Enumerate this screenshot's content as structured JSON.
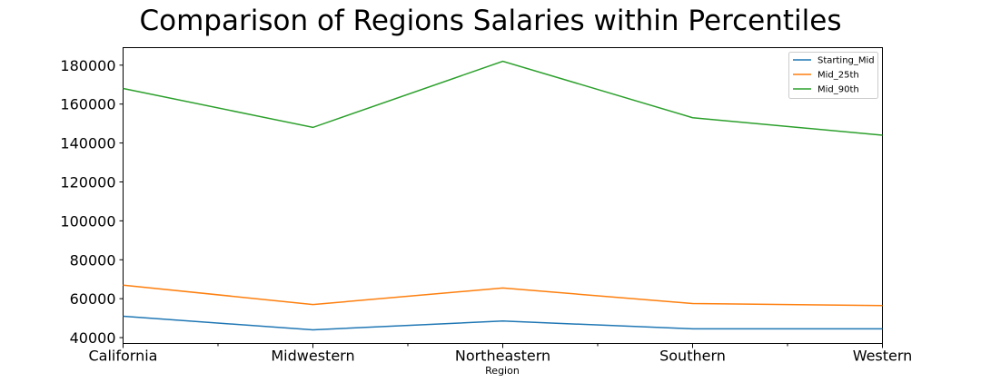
{
  "chart_data": {
    "type": "line",
    "title": "Comparison of Regions Salaries within Percentiles",
    "xlabel": "Region",
    "ylabel": "",
    "categories": [
      "California",
      "Midwestern",
      "Northeastern",
      "Southern",
      "Western"
    ],
    "ylim": [
      37000,
      189000
    ],
    "yticks": [
      40000,
      60000,
      80000,
      100000,
      120000,
      140000,
      160000,
      180000
    ],
    "grid": false,
    "legend_position": "top-right",
    "series": [
      {
        "name": "Starting_Mid",
        "color": "#1f77b4",
        "values": [
          51000,
          44000,
          48500,
          44500,
          44500
        ]
      },
      {
        "name": "Mid_25th",
        "color": "#ff7f0e",
        "values": [
          67000,
          57000,
          65500,
          57500,
          56500
        ]
      },
      {
        "name": "Mid_90th",
        "color": "#2ca02c",
        "values": [
          168000,
          148000,
          182000,
          153000,
          144000
        ]
      }
    ]
  }
}
